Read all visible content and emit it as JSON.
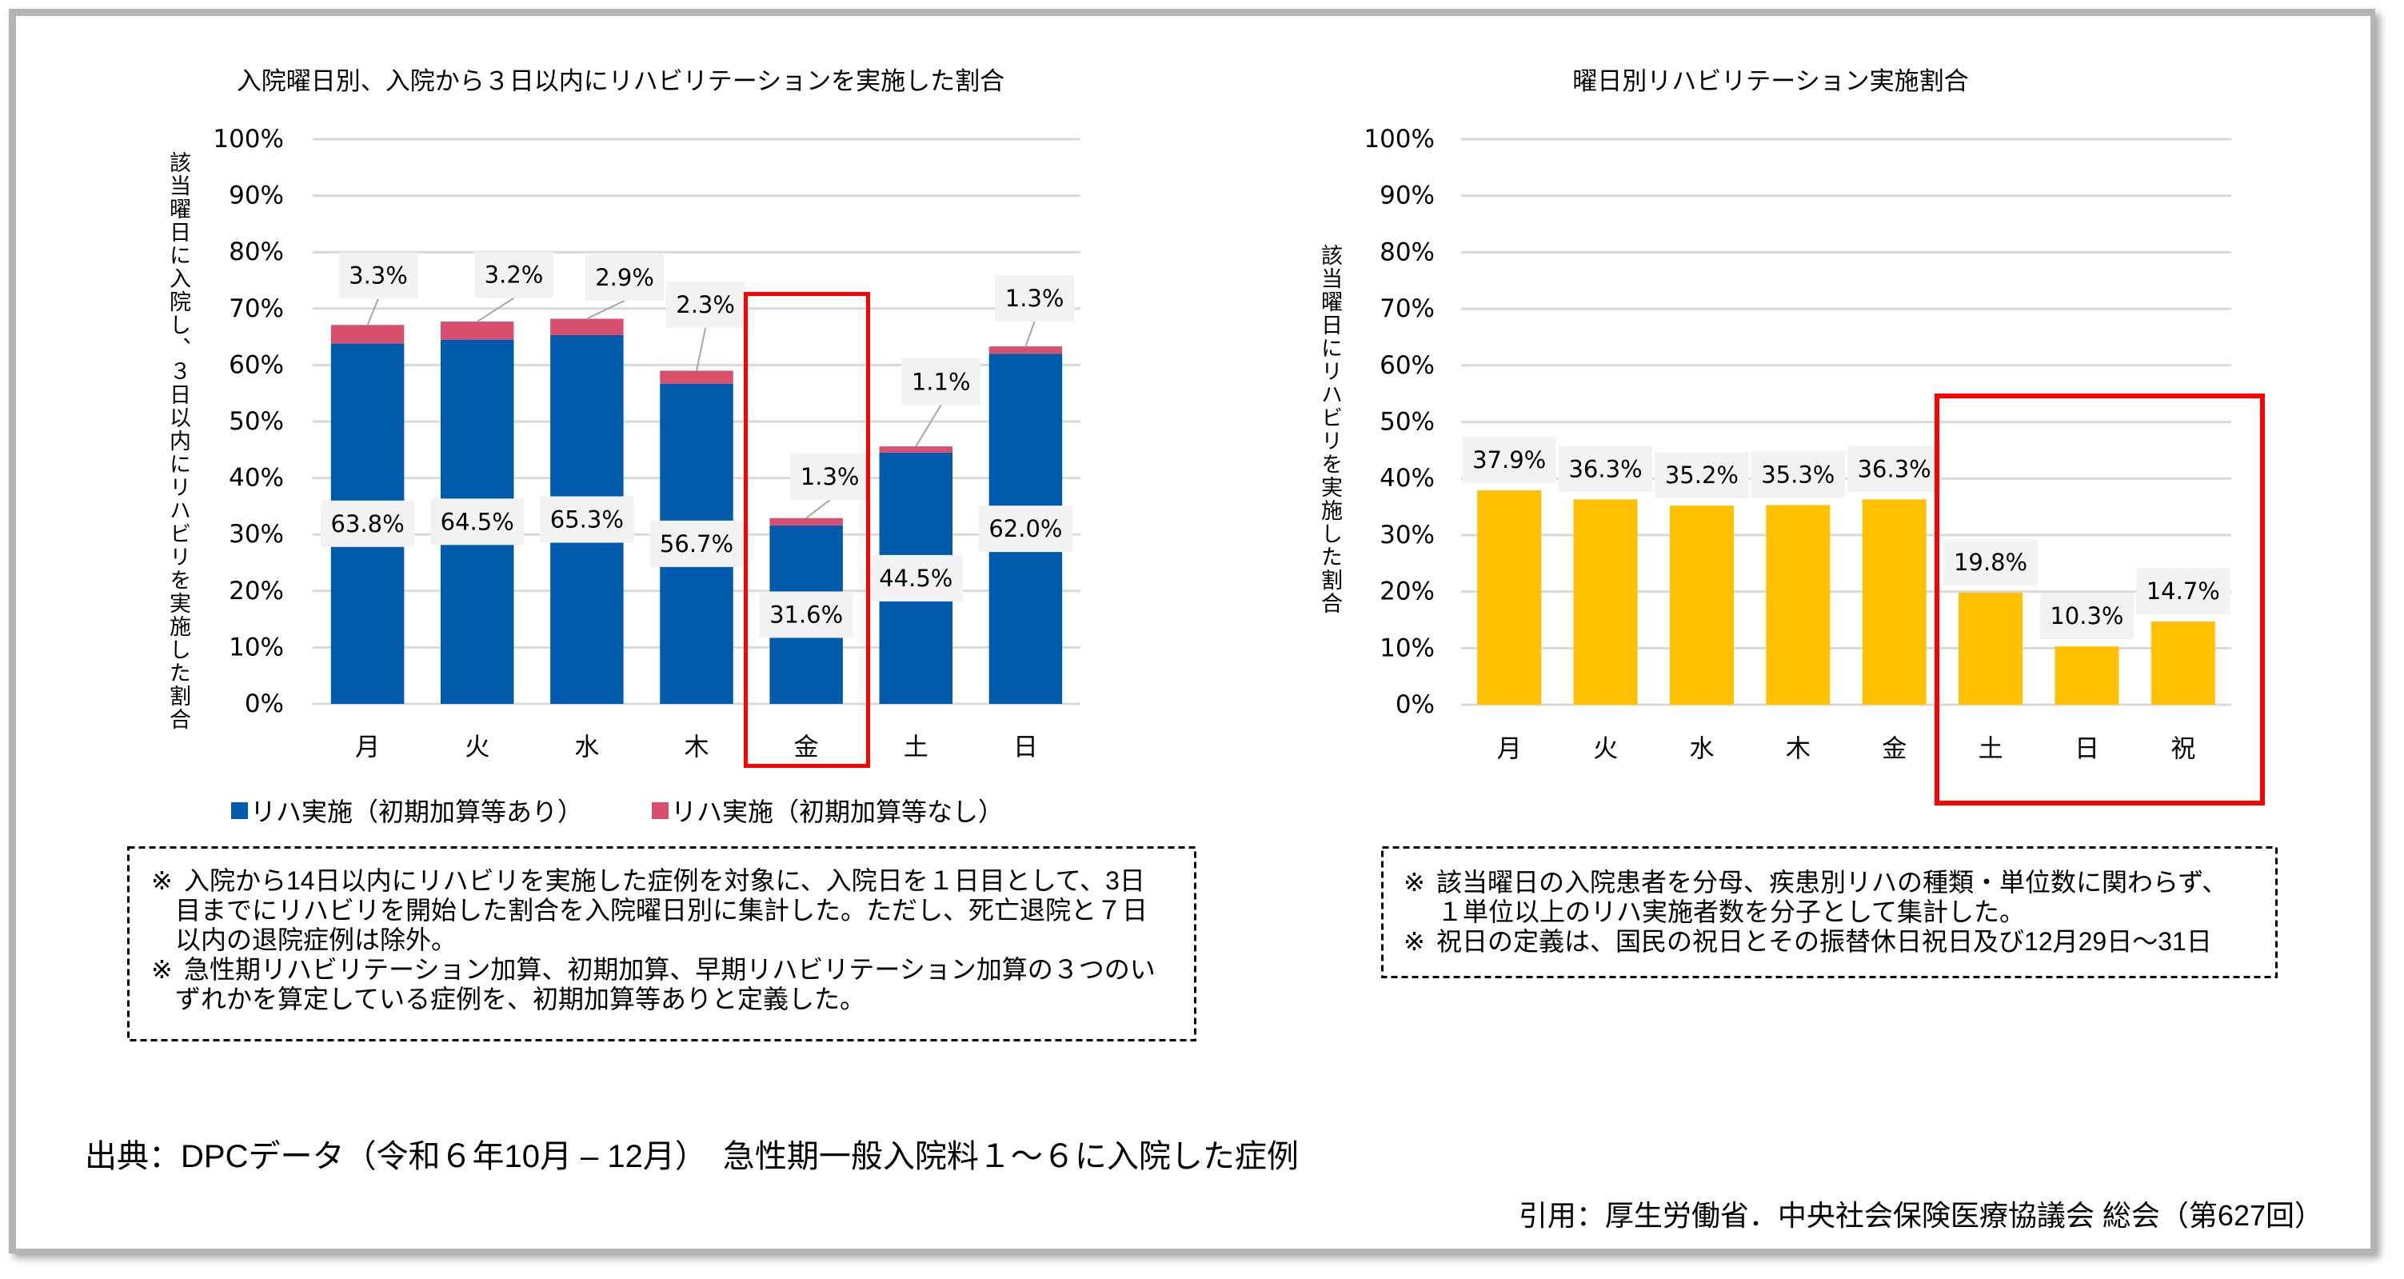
{
  "chart_data": [
    {
      "type": "bar",
      "stacked": true,
      "title": "入院曜日別、入院から３日以内にリハビリテーションを実施した割合",
      "xlabel": "",
      "ylabel": "該当曜日に入院し、３日以内にリハビリを実施した割合",
      "categories": [
        "月",
        "火",
        "水",
        "木",
        "金",
        "土",
        "日"
      ],
      "series": [
        {
          "name": "リハ実施（初期加算等あり）",
          "color": "#005BAC",
          "values": [
            63.8,
            64.5,
            65.3,
            56.7,
            31.6,
            44.5,
            62.0
          ],
          "data_labels": [
            "63.8%",
            "64.5%",
            "65.3%",
            "56.7%",
            "31.6%",
            "44.5%",
            "62.0%"
          ]
        },
        {
          "name": "リハ実施（初期加算等なし）",
          "color": "#D9506E",
          "values": [
            3.3,
            3.2,
            2.9,
            2.3,
            1.3,
            1.1,
            1.3
          ],
          "data_labels": [
            "3.3%",
            "3.2%",
            "2.9%",
            "2.3%",
            "1.3%",
            "1.1%",
            "1.3%"
          ]
        }
      ],
      "unit": "%",
      "ylim": [
        0,
        100
      ],
      "yticks": [
        0,
        10,
        20,
        30,
        40,
        50,
        60,
        70,
        80,
        90,
        100
      ],
      "ytick_labels": [
        "0%",
        "10%",
        "20%",
        "30%",
        "40%",
        "50%",
        "60%",
        "70%",
        "80%",
        "90%",
        "100%"
      ],
      "grid": true,
      "legend": "bottom",
      "highlight": {
        "categories": [
          "金"
        ],
        "color": "#FF0000"
      }
    },
    {
      "type": "bar",
      "stacked": false,
      "title": "曜日別リハビリテーション実施割合",
      "xlabel": "",
      "ylabel": "該当曜日にリハビリを実施した割合",
      "categories": [
        "月",
        "火",
        "水",
        "木",
        "金",
        "土",
        "日",
        "祝"
      ],
      "series": [
        {
          "color": "#FFC000",
          "values": [
            37.9,
            36.3,
            35.2,
            35.3,
            36.3,
            19.8,
            10.3,
            14.7
          ],
          "data_labels": [
            "37.9%",
            "36.3%",
            "35.2%",
            "35.3%",
            "36.3%",
            "19.8%",
            "10.3%",
            "14.7%"
          ]
        }
      ],
      "unit": "%",
      "ylim": [
        0,
        100
      ],
      "yticks": [
        0,
        10,
        20,
        30,
        40,
        50,
        60,
        70,
        80,
        90,
        100
      ],
      "ytick_labels": [
        "0%",
        "10%",
        "20%",
        "30%",
        "40%",
        "50%",
        "60%",
        "70%",
        "80%",
        "90%",
        "100%"
      ],
      "grid": true,
      "legend": "none",
      "highlight": {
        "categories": [
          "土",
          "日",
          "祝"
        ],
        "color": "#FF0000"
      }
    }
  ],
  "notes": {
    "left": [
      {
        "marker": "※",
        "lines": [
          "入院から14日以内にリハビリを実施した症例を対象に、入院日を１日目として、3日",
          "目までにリハビリを開始した割合を入院曜日別に集計した。ただし、死亡退院と７日",
          "以内の退院症例は除外。"
        ]
      },
      {
        "marker": "※",
        "lines": [
          "急性期リハビリテーション加算、初期加算、早期リハビリテーション加算の３つのい",
          "ずれかを算定している症例を、初期加算等ありと定義した。"
        ]
      }
    ],
    "right": [
      {
        "marker": "※",
        "lines": [
          "該当曜日の入院患者を分母、疾患別リハの種類・単位数に関わらず、",
          "１単位以上のリハ実施者数を分子として集計した。"
        ]
      },
      {
        "marker": "※",
        "lines": [
          "祝日の定義は、国民の祝日とその振替休日祝日及び12月29日～31日"
        ]
      }
    ]
  },
  "footer": {
    "source": "出典：DPCデータ（令和６年10月 – 12月）　急性期一般入院料１～６に入院した症例",
    "citation": "引用：厚生労働省．中央社会保険医療協議会 総会（第627回）"
  }
}
